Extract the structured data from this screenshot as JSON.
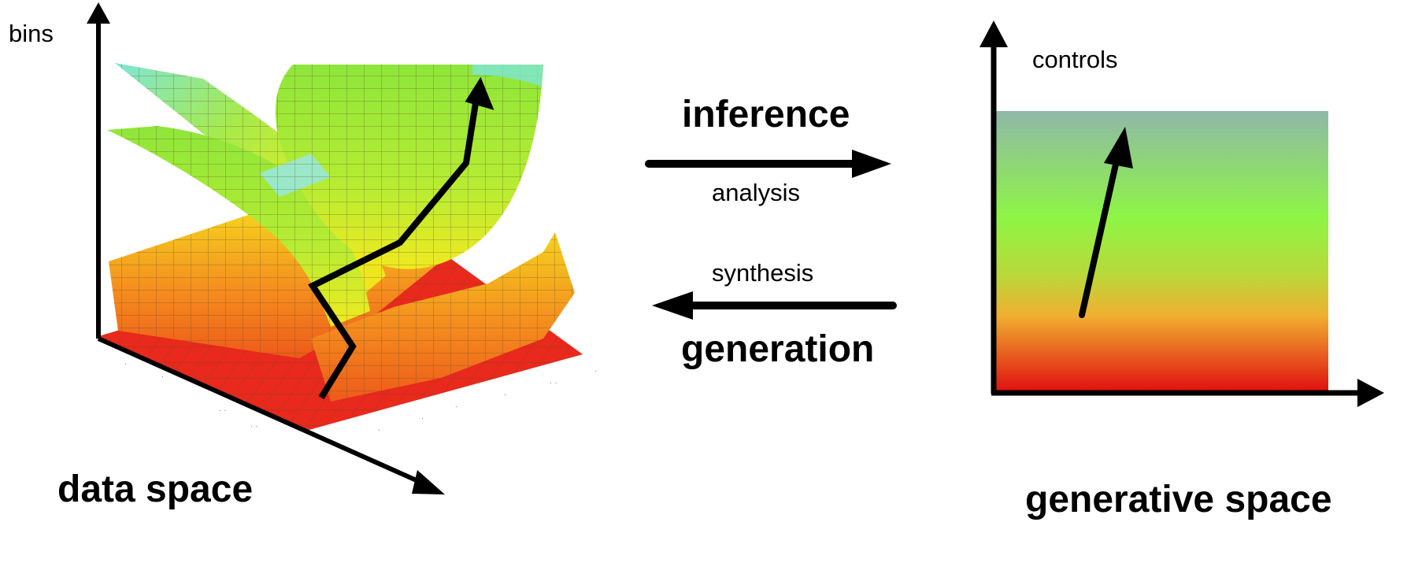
{
  "left_panel": {
    "axis_label": "bins",
    "title": "data space"
  },
  "middle": {
    "forward_main": "inference",
    "forward_sub": "analysis",
    "backward_sub": "synthesis",
    "backward_main": "generation"
  },
  "right_panel": {
    "axis_label": "controls",
    "title": "generative space"
  },
  "colors": {
    "surface_red": "#e8291c",
    "surface_orange": "#f5921e",
    "surface_yellow": "#f5e31e",
    "surface_green": "#8ee63a",
    "surface_cyan": "#7ee6d6",
    "grid_line": "#5a4a2a",
    "gradient_top": "#8fb8a8",
    "gradient_green": "#8ef545",
    "gradient_mid": "#b8d93a",
    "gradient_orange": "#f0b030",
    "gradient_bottom": "#e01010",
    "ink": "#000000"
  }
}
